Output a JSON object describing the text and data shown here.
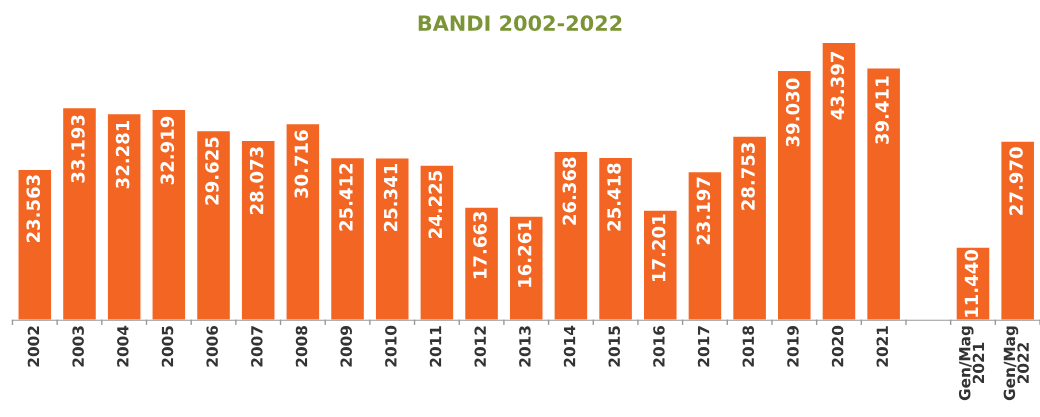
{
  "chart_data": {
    "type": "bar",
    "title": "BANDI 2002-2022",
    "categories": [
      "2002",
      "2003",
      "2004",
      "2005",
      "2006",
      "2007",
      "2008",
      "2009",
      "2010",
      "2011",
      "2012",
      "2013",
      "2014",
      "2015",
      "2016",
      "2017",
      "2018",
      "2019",
      "2020",
      "2021",
      null,
      "Gen/Mag\n2021",
      "Gen/Mag\n2022"
    ],
    "values": [
      23563,
      33193,
      32281,
      32919,
      29625,
      28073,
      30716,
      25412,
      25341,
      24225,
      17663,
      16261,
      26368,
      25418,
      17201,
      23197,
      28753,
      39030,
      43397,
      39411,
      null,
      11440,
      27970
    ],
    "value_labels": [
      "23.563",
      "33.193",
      "32.281",
      "32.919",
      "29.625",
      "28.073",
      "30.716",
      "25.412",
      "25.341",
      "24.225",
      "17.663",
      "16.261",
      "26.368",
      "25.418",
      "17.201",
      "23.197",
      "28.753",
      "39.030",
      "43.397",
      "39.411",
      null,
      "11.440",
      "27.970"
    ],
    "color": "#f26522",
    "grid": false,
    "legend": false
  }
}
